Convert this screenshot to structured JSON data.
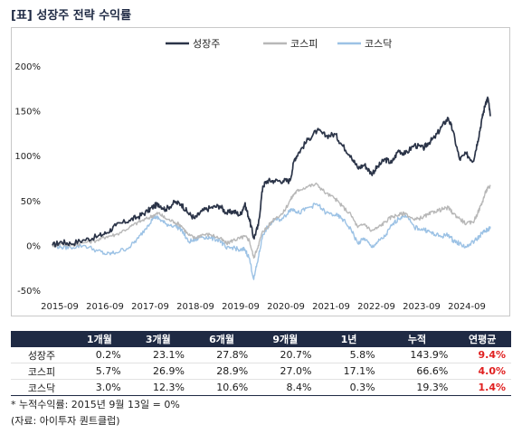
{
  "title": "[표] 성장주 전략 수익률",
  "chart_data": {
    "type": "line",
    "yticks": [
      "200%",
      "150%",
      "100%",
      "50%",
      "0%",
      "-50%"
    ],
    "ytick_values": [
      200,
      150,
      100,
      50,
      0,
      -50
    ],
    "ylim": [
      -50,
      200
    ],
    "xticks": [
      "2015-09",
      "2016-09",
      "2017-09",
      "2018-09",
      "2019-09",
      "2020-09",
      "2021-09",
      "2022-09",
      "2023-09",
      "2024-09"
    ],
    "xlim": [
      2015.7,
      2025.4
    ],
    "legend_position": "top-center",
    "series": [
      {
        "name": "성장주",
        "color": "#2b3448",
        "points": [
          [
            2015.7,
            0
          ],
          [
            2015.9,
            4
          ],
          [
            2016.1,
            2
          ],
          [
            2016.4,
            6
          ],
          [
            2016.7,
            10
          ],
          [
            2016.9,
            14
          ],
          [
            2017.1,
            22
          ],
          [
            2017.4,
            28
          ],
          [
            2017.6,
            32
          ],
          [
            2017.8,
            38
          ],
          [
            2017.95,
            44
          ],
          [
            2018.05,
            46
          ],
          [
            2018.2,
            40
          ],
          [
            2018.4,
            48
          ],
          [
            2018.55,
            46
          ],
          [
            2018.7,
            36
          ],
          [
            2018.85,
            30
          ],
          [
            2019.0,
            38
          ],
          [
            2019.2,
            42
          ],
          [
            2019.4,
            44
          ],
          [
            2019.55,
            36
          ],
          [
            2019.7,
            38
          ],
          [
            2019.85,
            34
          ],
          [
            2019.95,
            46
          ],
          [
            2020.05,
            30
          ],
          [
            2020.15,
            8
          ],
          [
            2020.25,
            22
          ],
          [
            2020.35,
            66
          ],
          [
            2020.45,
            72
          ],
          [
            2020.6,
            72
          ],
          [
            2020.8,
            72
          ],
          [
            2020.95,
            72
          ],
          [
            2021.05,
            96
          ],
          [
            2021.15,
            104
          ],
          [
            2021.35,
            118
          ],
          [
            2021.55,
            128
          ],
          [
            2021.75,
            122
          ],
          [
            2021.95,
            124
          ],
          [
            2022.1,
            112
          ],
          [
            2022.3,
            100
          ],
          [
            2022.45,
            86
          ],
          [
            2022.6,
            90
          ],
          [
            2022.75,
            80
          ],
          [
            2022.9,
            88
          ],
          [
            2023.05,
            96
          ],
          [
            2023.2,
            92
          ],
          [
            2023.35,
            106
          ],
          [
            2023.5,
            102
          ],
          [
            2023.7,
            112
          ],
          [
            2023.9,
            108
          ],
          [
            2024.0,
            114
          ],
          [
            2024.15,
            120
          ],
          [
            2024.3,
            132
          ],
          [
            2024.45,
            142
          ],
          [
            2024.55,
            128
          ],
          [
            2024.7,
            96
          ],
          [
            2024.85,
            102
          ],
          [
            2025.0,
            94
          ],
          [
            2025.1,
            116
          ],
          [
            2025.2,
            142
          ],
          [
            2025.28,
            160
          ],
          [
            2025.33,
            164
          ],
          [
            2025.38,
            144
          ]
        ]
      },
      {
        "name": "코스피",
        "color": "#b8b8b8",
        "points": [
          [
            2015.7,
            0
          ],
          [
            2015.9,
            2
          ],
          [
            2016.1,
            0
          ],
          [
            2016.4,
            3
          ],
          [
            2016.7,
            6
          ],
          [
            2016.9,
            10
          ],
          [
            2017.1,
            12
          ],
          [
            2017.4,
            20
          ],
          [
            2017.6,
            26
          ],
          [
            2017.8,
            30
          ],
          [
            2017.95,
            34
          ],
          [
            2018.05,
            36
          ],
          [
            2018.2,
            30
          ],
          [
            2018.4,
            26
          ],
          [
            2018.55,
            22
          ],
          [
            2018.7,
            12
          ],
          [
            2018.85,
            8
          ],
          [
            2019.0,
            12
          ],
          [
            2019.2,
            12
          ],
          [
            2019.4,
            8
          ],
          [
            2019.55,
            2
          ],
          [
            2019.7,
            6
          ],
          [
            2019.85,
            8
          ],
          [
            2019.95,
            10
          ],
          [
            2020.05,
            6
          ],
          [
            2020.15,
            -14
          ],
          [
            2020.25,
            0
          ],
          [
            2020.35,
            16
          ],
          [
            2020.45,
            20
          ],
          [
            2020.6,
            30
          ],
          [
            2020.8,
            36
          ],
          [
            2020.95,
            50
          ],
          [
            2021.05,
            58
          ],
          [
            2021.15,
            62
          ],
          [
            2021.35,
            66
          ],
          [
            2021.55,
            68
          ],
          [
            2021.75,
            58
          ],
          [
            2021.95,
            52
          ],
          [
            2022.1,
            44
          ],
          [
            2022.3,
            34
          ],
          [
            2022.45,
            20
          ],
          [
            2022.6,
            24
          ],
          [
            2022.75,
            16
          ],
          [
            2022.9,
            20
          ],
          [
            2023.05,
            26
          ],
          [
            2023.2,
            32
          ],
          [
            2023.35,
            34
          ],
          [
            2023.5,
            36
          ],
          [
            2023.7,
            28
          ],
          [
            2023.9,
            32
          ],
          [
            2024.0,
            34
          ],
          [
            2024.15,
            38
          ],
          [
            2024.3,
            40
          ],
          [
            2024.45,
            42
          ],
          [
            2024.55,
            36
          ],
          [
            2024.7,
            30
          ],
          [
            2024.85,
            24
          ],
          [
            2025.0,
            26
          ],
          [
            2025.1,
            36
          ],
          [
            2025.2,
            48
          ],
          [
            2025.28,
            60
          ],
          [
            2025.33,
            64
          ],
          [
            2025.38,
            66
          ]
        ]
      },
      {
        "name": "코스닥",
        "color": "#9cc2e5",
        "points": [
          [
            2015.7,
            0
          ],
          [
            2015.9,
            -2
          ],
          [
            2016.1,
            -2
          ],
          [
            2016.4,
            0
          ],
          [
            2016.7,
            -6
          ],
          [
            2016.9,
            -10
          ],
          [
            2017.1,
            -8
          ],
          [
            2017.4,
            -2
          ],
          [
            2017.6,
            8
          ],
          [
            2017.8,
            22
          ],
          [
            2017.95,
            32
          ],
          [
            2018.05,
            30
          ],
          [
            2018.2,
            24
          ],
          [
            2018.4,
            22
          ],
          [
            2018.55,
            18
          ],
          [
            2018.7,
            4
          ],
          [
            2018.85,
            6
          ],
          [
            2019.0,
            10
          ],
          [
            2019.2,
            8
          ],
          [
            2019.4,
            6
          ],
          [
            2019.55,
            -4
          ],
          [
            2019.7,
            -2
          ],
          [
            2019.85,
            -6
          ],
          [
            2019.95,
            -4
          ],
          [
            2020.05,
            -14
          ],
          [
            2020.15,
            -38
          ],
          [
            2020.25,
            -14
          ],
          [
            2020.35,
            12
          ],
          [
            2020.45,
            20
          ],
          [
            2020.6,
            28
          ],
          [
            2020.8,
            30
          ],
          [
            2020.95,
            40
          ],
          [
            2021.05,
            40
          ],
          [
            2021.15,
            36
          ],
          [
            2021.35,
            42
          ],
          [
            2021.55,
            46
          ],
          [
            2021.75,
            36
          ],
          [
            2021.95,
            34
          ],
          [
            2022.1,
            30
          ],
          [
            2022.3,
            18
          ],
          [
            2022.45,
            2
          ],
          [
            2022.6,
            8
          ],
          [
            2022.75,
            -2
          ],
          [
            2022.9,
            4
          ],
          [
            2023.05,
            10
          ],
          [
            2023.2,
            22
          ],
          [
            2023.35,
            30
          ],
          [
            2023.5,
            34
          ],
          [
            2023.7,
            20
          ],
          [
            2023.9,
            18
          ],
          [
            2024.0,
            16
          ],
          [
            2024.15,
            12
          ],
          [
            2024.3,
            10
          ],
          [
            2024.45,
            12
          ],
          [
            2024.55,
            6
          ],
          [
            2024.7,
            2
          ],
          [
            2024.85,
            -2
          ],
          [
            2025.0,
            4
          ],
          [
            2025.1,
            8
          ],
          [
            2025.2,
            14
          ],
          [
            2025.28,
            16
          ],
          [
            2025.33,
            18
          ],
          [
            2025.38,
            19
          ]
        ]
      }
    ]
  },
  "table": {
    "headers": [
      "",
      "1개월",
      "3개월",
      "6개월",
      "9개월",
      "1년",
      "누적",
      "연평균"
    ],
    "rows": [
      {
        "name": "성장주",
        "cells": [
          "0.2%",
          "23.1%",
          "27.8%",
          "20.7%",
          "5.8%",
          "143.9%"
        ],
        "avg": "9.4%"
      },
      {
        "name": "코스피",
        "cells": [
          "5.7%",
          "26.9%",
          "28.9%",
          "27.0%",
          "17.1%",
          "66.6%"
        ],
        "avg": "4.0%"
      },
      {
        "name": "코스닥",
        "cells": [
          "3.0%",
          "12.3%",
          "10.6%",
          "8.4%",
          "0.3%",
          "19.3%"
        ],
        "avg": "1.4%"
      }
    ]
  },
  "notes": {
    "footnote": "* 누적수익률: 2015년 9월 13일 = 0%",
    "source": "(자료: 아이투자 퀀트클럽)"
  }
}
